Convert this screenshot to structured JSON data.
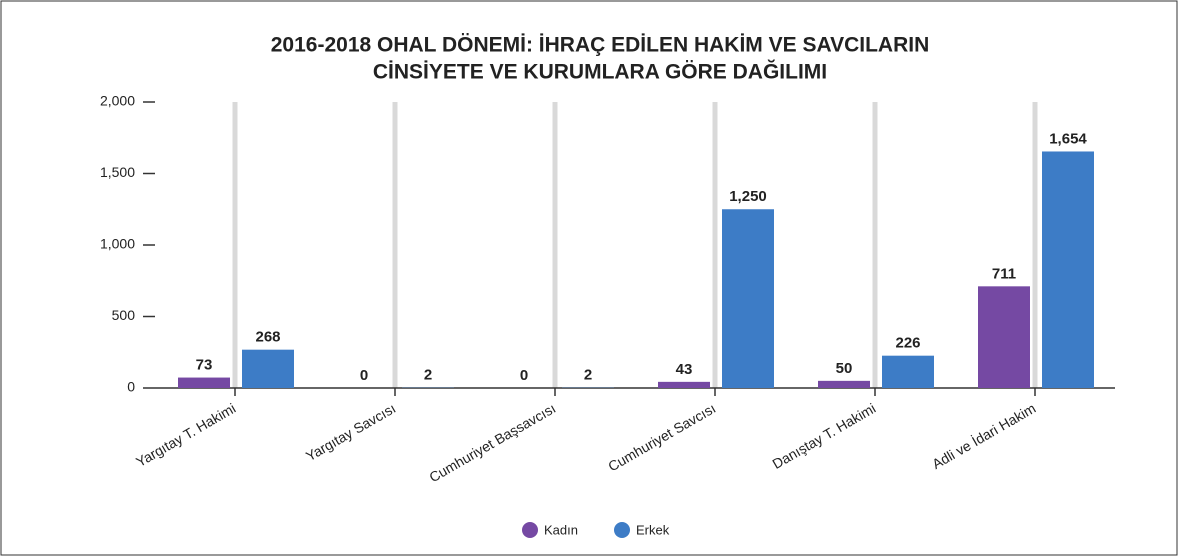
{
  "chart_data": {
    "type": "bar",
    "title": [
      "2016-2018 OHAL DÖNEMİ: İHRAÇ EDİLEN HAKİM VE SAVCILARIN",
      "CİNSİYETE VE KURUMLARA GÖRE DAĞILIMI"
    ],
    "categories": [
      "Yargıtay T. Hakimi",
      "Yargıtay Savcısı",
      "Cumhuriyet Başsavcısı",
      "Cumhuriyet Savcısı",
      "Danıştay T. Hakimi",
      "Adli ve İdari Hakim"
    ],
    "series": [
      {
        "name": "Kadın",
        "color": "#7549a3",
        "values": [
          73,
          0,
          0,
          43,
          50,
          711
        ],
        "value_labels": [
          "73",
          "0",
          "0",
          "43",
          "50",
          "711"
        ]
      },
      {
        "name": "Erkek",
        "color": "#3d7cc6",
        "values": [
          268,
          2,
          2,
          1250,
          226,
          1654
        ],
        "value_labels": [
          "268",
          "2",
          "2",
          "1,250",
          "226",
          "1,654"
        ]
      }
    ],
    "ylim": [
      0,
      2000
    ],
    "yticks": [
      0,
      500,
      {
        "value": 1000,
        "label": "1,000"
      },
      {
        "value": 1500,
        "label": "1,500"
      },
      {
        "value": 2000,
        "label": "2,000"
      }
    ],
    "legend": "bottom"
  }
}
